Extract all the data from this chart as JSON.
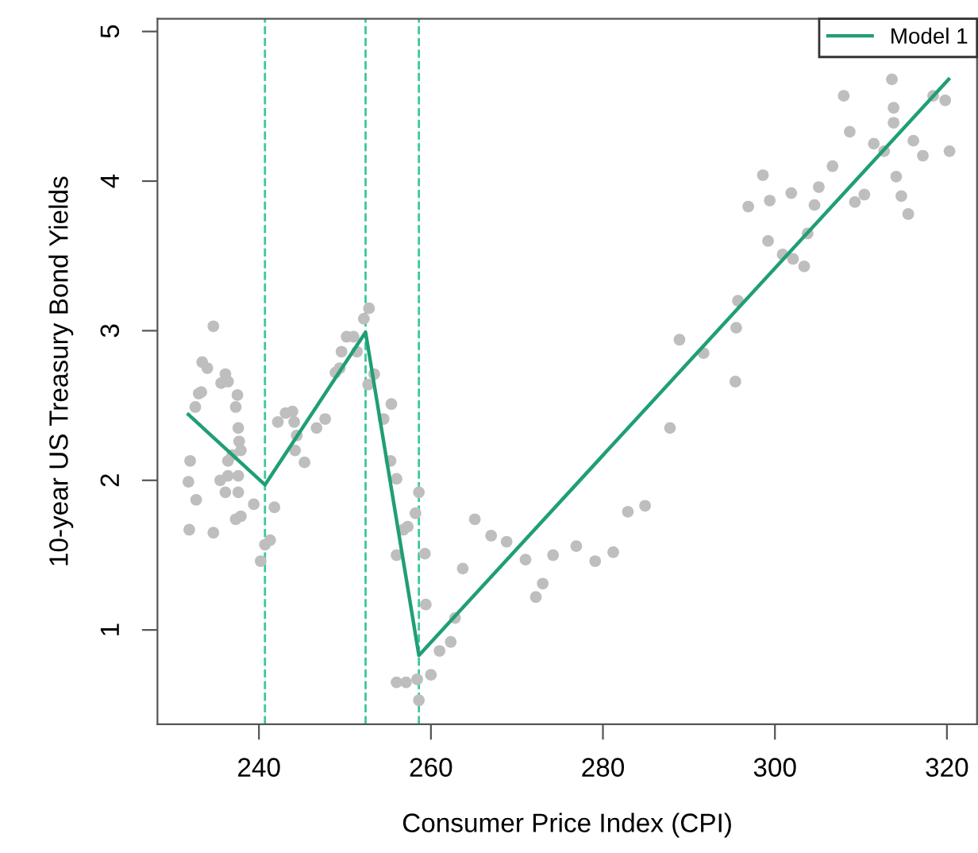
{
  "chart_data": {
    "type": "scatter",
    "xlabel": "Consumer Price Index (CPI)",
    "ylabel": "10-year US Treasury Bond Yields",
    "xlim": [
      228.2,
      323.5
    ],
    "ylim": [
      0.37,
      5.085
    ],
    "xticks": [
      240,
      260,
      280,
      300,
      320
    ],
    "yticks": [
      1,
      2,
      3,
      4,
      5
    ],
    "grid": false,
    "legend": "top right",
    "series": [
      {
        "color": "#bebebe",
        "marker": "circle",
        "x": [
          234.7,
          233.4,
          234.0,
          233.3,
          233.0,
          232.6,
          236.1,
          235.6,
          236.4,
          237.5,
          237.3,
          237.6,
          237.7,
          237.9,
          236.9,
          236.4,
          232.0,
          237.6,
          236.4,
          235.5,
          231.8,
          236.1,
          237.6,
          232.7,
          239.4,
          237.9,
          237.3,
          231.9,
          234.7,
          241.3,
          240.7,
          240.2,
          241.8,
          242.2,
          243.1,
          243.9,
          244.1,
          244.4,
          244.2,
          245.3,
          246.7,
          247.7,
          248.9,
          249.4,
          249.6,
          250.2,
          251.0,
          251.4,
          252.2,
          252.8,
          253.4,
          252.7,
          255.4,
          254.5,
          255.3,
          256.0,
          257.3,
          256.8,
          256.0,
          258.2,
          258.6,
          259.3,
          259.4,
          261.0,
          262.3,
          260.0,
          256.0,
          257.1,
          258.4,
          258.6,
          262.8,
          263.7,
          265.1,
          267.0,
          268.8,
          271.0,
          272.2,
          273.0,
          274.2,
          276.9,
          279.1,
          281.2,
          282.9,
          284.9,
          287.8,
          288.9,
          291.7,
          295.4,
          295.5,
          295.7,
          296.9,
          298.6,
          299.4,
          299.2,
          300.9,
          302.1,
          303.4,
          301.9,
          303.8,
          304.6,
          305.1,
          306.7,
          308.0,
          308.7,
          309.3,
          310.4,
          311.5,
          312.7,
          313.6,
          313.8,
          313.8,
          314.1,
          314.7,
          315.5,
          316.1,
          317.2,
          318.4,
          319.8,
          320.3
        ],
        "values": [
          3.03,
          2.79,
          2.75,
          2.59,
          2.58,
          2.49,
          2.71,
          2.65,
          2.66,
          2.57,
          2.49,
          2.35,
          2.26,
          2.2,
          2.17,
          2.13,
          2.13,
          2.03,
          2.03,
          2.0,
          1.99,
          1.92,
          1.92,
          1.87,
          1.84,
          1.76,
          1.74,
          1.67,
          1.65,
          1.6,
          1.57,
          1.46,
          1.82,
          2.39,
          2.45,
          2.46,
          2.39,
          2.3,
          2.2,
          2.12,
          2.35,
          2.41,
          2.72,
          2.75,
          2.86,
          2.96,
          2.96,
          2.86,
          3.08,
          3.15,
          2.71,
          2.64,
          2.51,
          2.41,
          2.13,
          2.01,
          1.69,
          1.67,
          1.5,
          1.78,
          1.92,
          1.51,
          1.17,
          0.86,
          0.92,
          0.7,
          0.65,
          0.65,
          0.67,
          0.53,
          1.08,
          1.41,
          1.74,
          1.63,
          1.59,
          1.47,
          1.22,
          1.31,
          1.5,
          1.56,
          1.46,
          1.52,
          1.79,
          1.83,
          2.35,
          2.94,
          2.85,
          2.66,
          3.02,
          3.2,
          3.83,
          4.04,
          3.87,
          3.6,
          3.51,
          3.48,
          3.43,
          3.92,
          3.65,
          3.84,
          3.96,
          4.1,
          4.57,
          4.33,
          3.86,
          3.91,
          4.25,
          4.2,
          4.68,
          4.49,
          4.39,
          4.03,
          3.9,
          3.78,
          4.27,
          4.17,
          4.57,
          4.54,
          4.2
        ]
      },
      {
        "type": "line",
        "name": "Model 1",
        "color": "#1f9e77",
        "marker": "none",
        "line_style": "solid",
        "x": [
          231.8,
          240.7,
          252.4,
          258.6,
          320.2
        ],
        "values": [
          2.44,
          1.97,
          2.99,
          0.83,
          4.68
        ]
      }
    ],
    "ref_lines": [
      {
        "axis": "x",
        "value": 240.7,
        "color": "#3cc79a",
        "line_style": "dashed"
      },
      {
        "axis": "x",
        "value": 252.4,
        "color": "#3cc79a",
        "line_style": "dashed"
      },
      {
        "axis": "x",
        "value": 258.6,
        "color": "#3cc79a",
        "line_style": "dashed"
      }
    ]
  }
}
